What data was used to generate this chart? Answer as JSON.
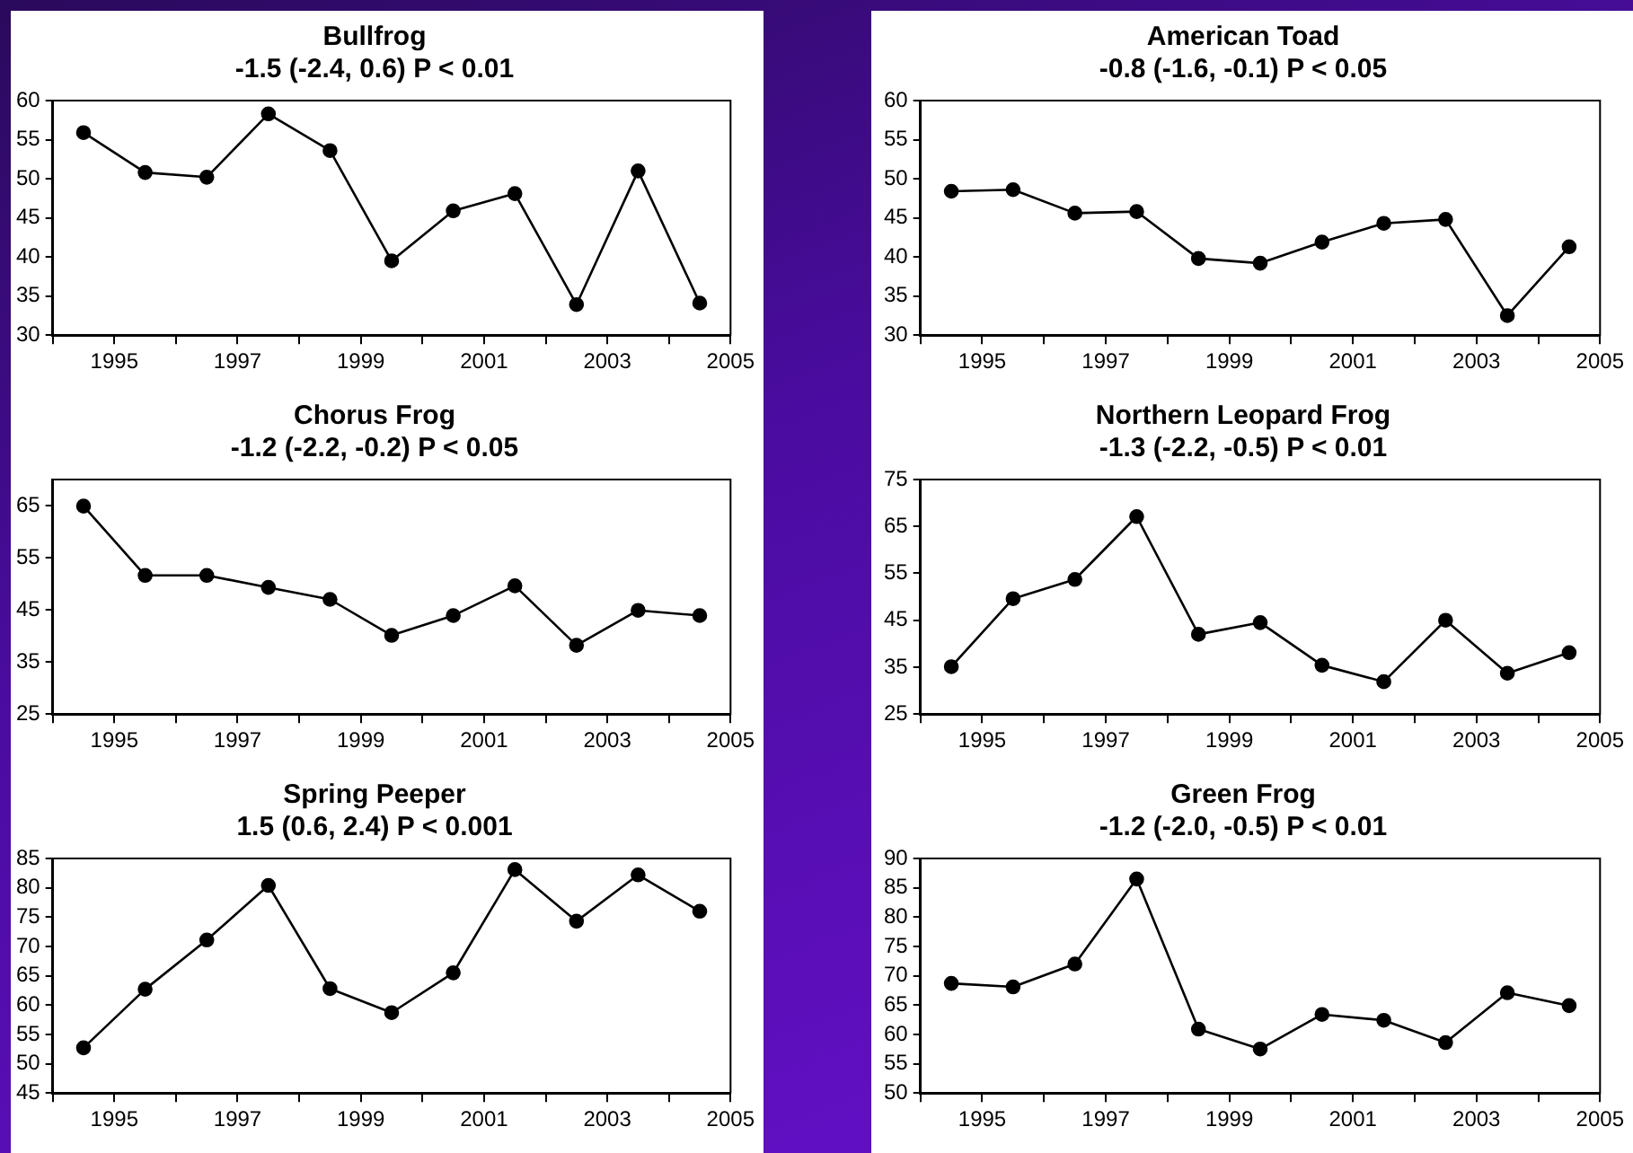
{
  "chart_data": [
    {
      "type": "line",
      "title": "Bullfrog",
      "subtitle": "-1.5 (-2.4, 0.6) P < 0.01",
      "x": [
        1994.5,
        1995.5,
        1996.5,
        1997.5,
        1998.5,
        1999.5,
        2000.5,
        2001.5,
        2002.5,
        2003.5,
        2004.5
      ],
      "values": [
        55.9,
        50.8,
        50.2,
        58.3,
        53.6,
        39.5,
        45.9,
        48.1,
        33.9,
        51.0,
        34.1
      ],
      "color": "#000000",
      "marker": "circle",
      "grid": false,
      "legend": false,
      "xlim": [
        1994,
        2005
      ],
      "xticks": [
        {
          "value": 1994,
          "label": null
        },
        1995,
        {
          "value": 1996,
          "label": null
        },
        1997,
        {
          "value": 1998,
          "label": null
        },
        1999,
        {
          "value": 2000,
          "label": null
        },
        2001,
        {
          "value": 2002,
          "label": null
        },
        2003,
        {
          "value": 2004,
          "label": null
        },
        2005
      ],
      "ylim": [
        30,
        60
      ],
      "yticks": [
        30,
        35,
        40,
        45,
        50,
        55,
        60
      ]
    },
    {
      "type": "line",
      "title": "American Toad",
      "subtitle": "-0.8 (-1.6, -0.1) P < 0.05",
      "x": [
        1994.5,
        1995.5,
        1996.5,
        1997.5,
        1998.5,
        1999.5,
        2000.5,
        2001.5,
        2002.5,
        2003.5,
        2004.5
      ],
      "values": [
        48.4,
        48.6,
        45.6,
        45.8,
        39.8,
        39.2,
        41.9,
        44.3,
        44.8,
        32.5,
        41.3
      ],
      "color": "#000000",
      "marker": "circle",
      "grid": false,
      "legend": false,
      "xlim": [
        1994,
        2005
      ],
      "xticks": [
        {
          "value": 1994,
          "label": null
        },
        1995,
        {
          "value": 1996,
          "label": null
        },
        1997,
        {
          "value": 1998,
          "label": null
        },
        1999,
        {
          "value": 2000,
          "label": null
        },
        2001,
        {
          "value": 2002,
          "label": null
        },
        2003,
        {
          "value": 2004,
          "label": null
        },
        2005
      ],
      "ylim": [
        30,
        60
      ],
      "yticks": [
        30,
        35,
        40,
        45,
        50,
        55,
        60
      ]
    },
    {
      "type": "line",
      "title": "Chorus Frog",
      "subtitle": "-1.2 (-2.2, -0.2) P < 0.05",
      "x": [
        1994.5,
        1995.5,
        1996.5,
        1997.5,
        1998.5,
        1999.5,
        2000.5,
        2001.5,
        2002.5,
        2003.5,
        2004.5
      ],
      "values": [
        64.9,
        51.6,
        51.6,
        49.3,
        47.0,
        40.1,
        43.9,
        49.6,
        38.2,
        44.9,
        43.9
      ],
      "color": "#000000",
      "marker": "circle",
      "grid": false,
      "legend": false,
      "xlim": [
        1994,
        2005
      ],
      "xticks": [
        {
          "value": 1994,
          "label": null
        },
        1995,
        {
          "value": 1996,
          "label": null
        },
        1997,
        {
          "value": 1998,
          "label": null
        },
        1999,
        {
          "value": 2000,
          "label": null
        },
        2001,
        {
          "value": 2002,
          "label": null
        },
        2003,
        {
          "value": 2004,
          "label": null
        },
        2005
      ],
      "ylim": [
        25,
        70
      ],
      "yticks": [
        25,
        35,
        45,
        55,
        65
      ]
    },
    {
      "type": "line",
      "title": "Northern Leopard Frog",
      "subtitle": "-1.3 (-2.2, -0.5) P < 0.01",
      "x": [
        1994.5,
        1995.5,
        1996.5,
        1997.5,
        1998.5,
        1999.5,
        2000.5,
        2001.5,
        2002.5,
        2003.5,
        2004.5
      ],
      "values": [
        35.1,
        49.6,
        53.7,
        67.1,
        42.0,
        44.5,
        35.4,
        31.9,
        45.0,
        33.7,
        38.1
      ],
      "color": "#000000",
      "marker": "circle",
      "grid": false,
      "legend": false,
      "xlim": [
        1994,
        2005
      ],
      "xticks": [
        {
          "value": 1994,
          "label": null
        },
        1995,
        {
          "value": 1996,
          "label": null
        },
        1997,
        {
          "value": 1998,
          "label": null
        },
        1999,
        {
          "value": 2000,
          "label": null
        },
        2001,
        {
          "value": 2002,
          "label": null
        },
        2003,
        {
          "value": 2004,
          "label": null
        },
        2005
      ],
      "ylim": [
        25,
        75
      ],
      "yticks": [
        25,
        35,
        45,
        55,
        65,
        75
      ]
    },
    {
      "type": "line",
      "title": "Spring Peeper",
      "subtitle": "1.5 (0.6, 2.4) P < 0.001",
      "x": [
        1994.5,
        1995.5,
        1996.5,
        1997.5,
        1998.5,
        1999.5,
        2000.5,
        2001.5,
        2002.5,
        2003.5,
        2004.5
      ],
      "values": [
        52.7,
        62.7,
        71.1,
        80.4,
        62.8,
        58.7,
        65.5,
        83.1,
        74.3,
        82.2,
        76.0
      ],
      "color": "#000000",
      "marker": "circle",
      "grid": false,
      "legend": false,
      "xlim": [
        1994,
        2005
      ],
      "xticks": [
        {
          "value": 1994,
          "label": null
        },
        1995,
        {
          "value": 1996,
          "label": null
        },
        1997,
        {
          "value": 1998,
          "label": null
        },
        1999,
        {
          "value": 2000,
          "label": null
        },
        2001,
        {
          "value": 2002,
          "label": null
        },
        2003,
        {
          "value": 2004,
          "label": null
        },
        2005
      ],
      "ylim": [
        45,
        85
      ],
      "yticks": [
        45,
        50,
        55,
        60,
        65,
        70,
        75,
        80,
        85
      ]
    },
    {
      "type": "line",
      "title": "Green Frog",
      "subtitle": "-1.2 (-2.0, -0.5) P < 0.01",
      "x": [
        1994.5,
        1995.5,
        1996.5,
        1997.5,
        1998.5,
        1999.5,
        2000.5,
        2001.5,
        2002.5,
        2003.5,
        2004.5
      ],
      "values": [
        68.7,
        68.1,
        72.0,
        86.5,
        60.9,
        57.5,
        63.4,
        62.4,
        58.6,
        67.1,
        64.9
      ],
      "color": "#000000",
      "marker": "circle",
      "grid": false,
      "legend": false,
      "xlim": [
        1994,
        2005
      ],
      "xticks": [
        {
          "value": 1994,
          "label": null
        },
        1995,
        {
          "value": 1996,
          "label": null
        },
        1997,
        {
          "value": 1998,
          "label": null
        },
        1999,
        {
          "value": 2000,
          "label": null
        },
        2001,
        {
          "value": 2002,
          "label": null
        },
        2003,
        {
          "value": 2004,
          "label": null
        },
        2005
      ],
      "ylim": [
        50,
        90
      ],
      "yticks": [
        50,
        55,
        60,
        65,
        70,
        75,
        80,
        85,
        90
      ]
    }
  ]
}
